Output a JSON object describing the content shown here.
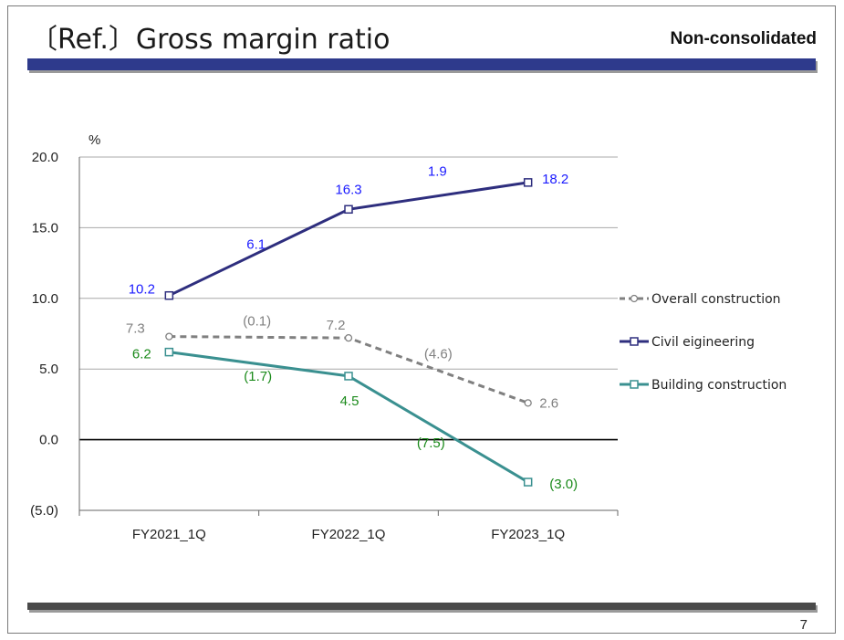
{
  "slide": {
    "title": "〔Ref.〕Gross margin ratio",
    "subtitle": "Non-consolidated",
    "page_number": "7"
  },
  "chart_data": {
    "type": "line",
    "title": "〔Ref.〕Gross margin ratio",
    "ylabel": "%",
    "xlabel": "",
    "ylim": [
      -5,
      20
    ],
    "yticks": [
      20,
      15,
      10,
      5,
      0,
      -5
    ],
    "ytick_labels": [
      "20.0",
      "15.0",
      "10.0",
      "5.0",
      "0.0",
      "(5.0)"
    ],
    "categories": [
      "FY2021_1Q",
      "FY2022_1Q",
      "FY2023_1Q"
    ],
    "grid": true,
    "legend_position": "right",
    "series": [
      {
        "name": "Overall construction",
        "values": [
          7.3,
          7.2,
          2.6
        ],
        "value_labels": [
          "7.3",
          "7.2",
          "2.6"
        ],
        "change_labels": [
          "(0.1)",
          "(4.6)"
        ],
        "color": "#808080",
        "label_color": "#808080",
        "line_style": "dashed",
        "marker": "circle"
      },
      {
        "name": "Civil eigineering",
        "values": [
          10.2,
          16.3,
          18.2
        ],
        "value_labels": [
          "10.2",
          "16.3",
          "18.2"
        ],
        "change_labels": [
          "6.1",
          "1.9"
        ],
        "color": "#2e2e7e",
        "label_color": "#1a1aff",
        "line_style": "solid",
        "marker": "square"
      },
      {
        "name": "Building construction",
        "values": [
          6.2,
          4.5,
          -3.0
        ],
        "value_labels": [
          "6.2",
          "4.5",
          "(3.0)"
        ],
        "change_labels": [
          "(1.7)",
          "(7.5)"
        ],
        "color": "#3a9090",
        "label_color": "#1a8a1a",
        "line_style": "solid",
        "marker": "square"
      }
    ]
  }
}
